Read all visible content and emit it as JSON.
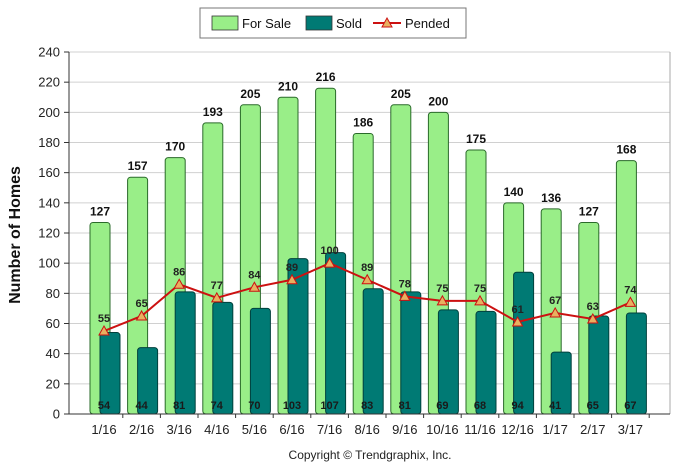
{
  "chart_data": {
    "type": "bar",
    "title": "",
    "xlabel": "",
    "ylabel": "Number of Homes",
    "ylim": [
      0,
      240
    ],
    "yticks": [
      0,
      20,
      40,
      60,
      80,
      100,
      120,
      140,
      160,
      180,
      200,
      220,
      240
    ],
    "categories": [
      "1/16",
      "2/16",
      "3/16",
      "4/16",
      "5/16",
      "6/16",
      "7/16",
      "8/16",
      "9/16",
      "10/16",
      "11/16",
      "12/16",
      "1/17",
      "2/17",
      "3/17"
    ],
    "series": [
      {
        "name": "For Sale",
        "kind": "bar",
        "color": "#99ee88",
        "values": [
          127,
          157,
          170,
          193,
          205,
          210,
          216,
          186,
          205,
          200,
          175,
          140,
          136,
          127,
          168
        ]
      },
      {
        "name": "Sold",
        "kind": "bar",
        "color": "#007a74",
        "values": [
          54,
          44,
          81,
          74,
          70,
          103,
          107,
          83,
          81,
          69,
          68,
          94,
          41,
          65,
          67
        ]
      },
      {
        "name": "Pended",
        "kind": "line",
        "color": "#cc1111",
        "marker_color": "#e8b060",
        "values": [
          55,
          65,
          86,
          77,
          84,
          89,
          100,
          89,
          78,
          75,
          75,
          61,
          67,
          63,
          74
        ]
      }
    ],
    "grid": true,
    "legend_position": "top-center",
    "copyright": "Copyright © Trendgraphix, Inc."
  }
}
